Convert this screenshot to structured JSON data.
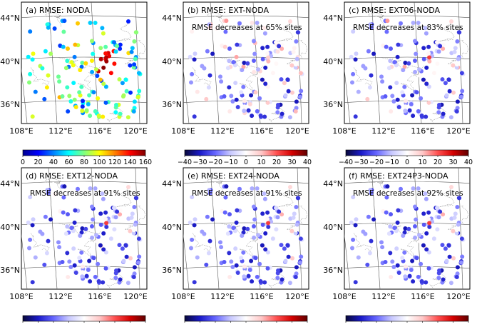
{
  "lat_labels": [
    "44°N",
    "40°N",
    "36°N"
  ],
  "lon_labels": [
    "108°E",
    "112°E",
    "116°E",
    "120°E"
  ],
  "panels": [
    {
      "title": "(a) RMSE: NODA",
      "annotation": "",
      "colorbar": "rmse",
      "mode": "noda",
      "pos_frac": 0.0
    },
    {
      "title": "(b) RMSE: EXT-NODA",
      "annotation": "RMSE decreases at 65% sites",
      "colorbar": "diff",
      "mode": "diff",
      "pos_frac": 0.35
    },
    {
      "title": "(c) RMSE: EXT06-NODA",
      "annotation": "RMSE decreases at 83% sites",
      "colorbar": "diff",
      "mode": "diff",
      "pos_frac": 0.17
    },
    {
      "title": "(d) RMSE: EXT12-NODA",
      "annotation": "RMSE decreases at 91% sites",
      "colorbar": "diff",
      "mode": "diff",
      "pos_frac": 0.09
    },
    {
      "title": "(e) RMSE: EXT24-NODA",
      "annotation": "RMSE decreases at 91% sites",
      "colorbar": "diff",
      "mode": "diff",
      "pos_frac": 0.09
    },
    {
      "title": "(f) RMSE: EXT24P3-NODA",
      "annotation": "RMSE decreases at 92% sites",
      "colorbar": "diff",
      "mode": "diff",
      "pos_frac": 0.08
    }
  ],
  "colorbars": {
    "rmse": {
      "ticks": [
        "0",
        "20",
        "40",
        "60",
        "80",
        "100",
        "120",
        "140",
        "160"
      ],
      "colors": [
        "#00008f",
        "#0000ff",
        "#0080ff",
        "#00ffff",
        "#80ff80",
        "#ffff00",
        "#ff8000",
        "#ff0000",
        "#800000"
      ]
    },
    "diff": {
      "ticks": [
        "−40",
        "−30",
        "−20",
        "−10",
        "0",
        "10",
        "20",
        "30",
        "40"
      ],
      "colors": [
        "#08083a",
        "#1a1ac8",
        "#6666ff",
        "#c8c8ff",
        "#ffffff",
        "#ffc8c8",
        "#ff5050",
        "#d40000",
        "#600000"
      ]
    }
  }
}
